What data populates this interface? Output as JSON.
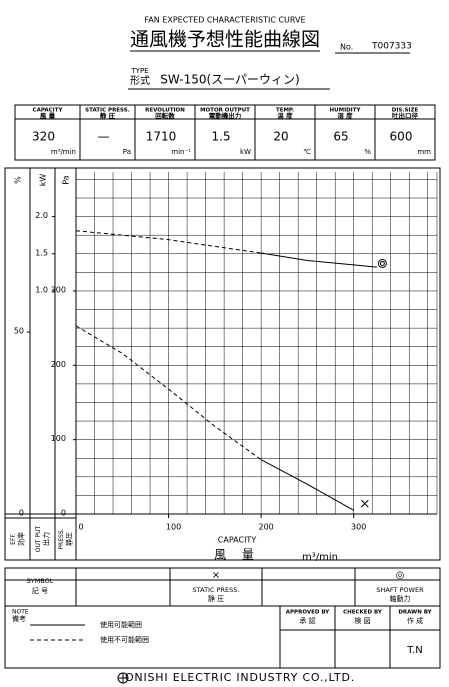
{
  "header": {
    "title_en": "FAN EXPECTED CHARACTERISTIC CURVE",
    "title_ja": "通風機予想性能曲線図",
    "no_label": "No.",
    "no": "T007333",
    "type_label_en": "TYPE",
    "type_label_ja": "形式",
    "type": "SW-150(スーパーウィン)"
  },
  "specs": [
    {
      "en": "CAPACITY",
      "ja": "風 量",
      "value": 320,
      "unit": "m³/min"
    },
    {
      "en": "STATIC PRESS.",
      "ja": "静 圧",
      "value": "—",
      "unit": "Pa"
    },
    {
      "en": "REVOLUTION",
      "ja": "回転数",
      "value": 1710,
      "unit": "min⁻¹"
    },
    {
      "en": "MOTOR OUTPUT",
      "ja": "電動機出力",
      "value": 1.5,
      "unit": "kW"
    },
    {
      "en": "TEMP.",
      "ja": "温 度",
      "value": 20,
      "unit": "℃"
    },
    {
      "en": "HUMIDITY",
      "ja": "湿 度",
      "value": 65,
      "unit": "%"
    },
    {
      "en": "DIS.SIZE",
      "ja": "吐出口径",
      "value": 600,
      "unit": "mm"
    }
  ],
  "chart_data": {
    "type": "line",
    "x_label_en": "CAPACITY",
    "x_label_ja": "風 量",
    "x_unit": "m³/min",
    "y_label": "Pa",
    "y2_label": "kW",
    "y3_label": "%",
    "y_title_en": "PRESS.",
    "y_title_ja": "静圧",
    "y2_title_en": "OUT PUT",
    "y2_title_ja": "出力",
    "y3_title_en": "EFF.",
    "y3_title_ja": "効率",
    "x": [
      0,
      50,
      100,
      150,
      200,
      250,
      300,
      325
    ],
    "xlim": [
      0,
      390
    ],
    "xticks": [
      0,
      100,
      200,
      300
    ],
    "xgrid": 20,
    "ylim": [
      0,
      460
    ],
    "yticks": [
      0,
      100,
      200,
      300
    ],
    "ygrid": 25,
    "y2lim": [
      -2,
      2.6
    ],
    "y2ticks": [
      {
        "value": 1,
        "label": "1.0"
      },
      1.5,
      {
        "value": 2,
        "label": "2.0"
      }
    ],
    "y3lim": [
      0,
      94
    ],
    "y3ticks": [
      0,
      50
    ],
    "series": [
      {
        "axis": "y",
        "dash": true,
        "color": "#000000",
        "values": [
          253,
          216,
          168,
          118,
          73,
          null,
          null,
          null
        ]
      },
      {
        "axis": "y",
        "dash": false,
        "color": "#000000",
        "values": [
          null,
          null,
          null,
          null,
          73,
          40,
          5,
          null
        ]
      },
      {
        "axis": "y2",
        "dash": true,
        "color": "#000000",
        "values": [
          1.81,
          1.75,
          1.69,
          1.6,
          1.51,
          null,
          null,
          null
        ]
      },
      {
        "axis": "y2",
        "dash": false,
        "color": "#000000",
        "values": [
          null,
          null,
          null,
          null,
          1.51,
          1.41,
          1.35,
          1.32
        ]
      }
    ],
    "points": [
      {
        "axis": "y",
        "marker": "x",
        "x": 312,
        "y": 14
      },
      {
        "axis": "y2",
        "marker": "double-circle",
        "x": 331,
        "y": 1.37
      }
    ]
  },
  "symbols": {
    "label_en": "SYMBOL",
    "label_ja": "記 号",
    "items": [
      {
        "mark": "×",
        "en": "STATIC PRESS.",
        "ja": "静 圧"
      },
      {
        "mark": "◎",
        "en": "SHAFT POWER",
        "ja": "軸動力"
      }
    ]
  },
  "notes": {
    "label_en": "NOTE",
    "label_ja": "備考",
    "solid": "使用可能範囲",
    "dashed": "使用不可能範囲"
  },
  "approvals": [
    {
      "en": "APPROVED BY",
      "ja": "承 認"
    },
    {
      "en": "CHECKED BY",
      "ja": "検 図"
    },
    {
      "en": "DRAWN BY",
      "ja": "作 成",
      "name": "T.N"
    }
  ],
  "footer": {
    "company": "ONISHI ELECTRIC INDUSTRY CO.,LTD."
  }
}
